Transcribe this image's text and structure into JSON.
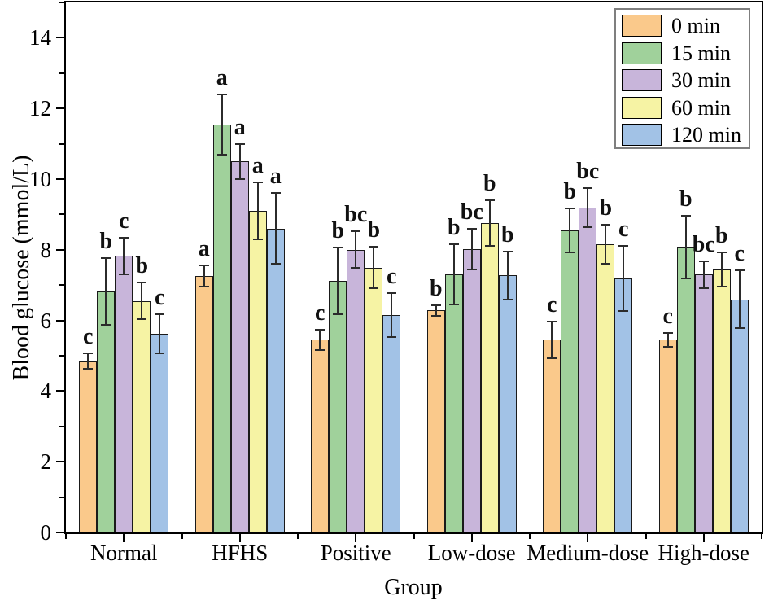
{
  "chart_data": {
    "type": "bar",
    "title": "",
    "xlabel": "Group",
    "ylabel": "Blood glucose (mmol/L)",
    "categories": [
      "Normal",
      "HFHS",
      "Positive",
      "Low-dose",
      "Medium-dose",
      "High-dose"
    ],
    "series": [
      {
        "name": "0 min",
        "color": "#FAC98B",
        "values": [
          4.85,
          7.25,
          5.45,
          6.28,
          5.45,
          5.45
        ],
        "errors": [
          0.22,
          0.3,
          0.28,
          0.15,
          0.52,
          0.2
        ],
        "letters": [
          "c",
          "a",
          "c",
          "b",
          "c",
          "c"
        ]
      },
      {
        "name": "15 min",
        "color": "#A0D19B",
        "values": [
          6.82,
          11.55,
          7.12,
          7.3,
          8.55,
          8.08
        ],
        "errors": [
          0.95,
          0.85,
          0.95,
          0.85,
          0.62,
          0.88
        ],
        "letters": [
          "b",
          "a",
          "b",
          "b",
          "b",
          "b"
        ]
      },
      {
        "name": "30 min",
        "color": "#C8B5DA",
        "values": [
          7.83,
          10.5,
          8.0,
          8.02,
          9.2,
          7.3
        ],
        "errors": [
          0.52,
          0.5,
          0.52,
          0.58,
          0.55,
          0.38
        ],
        "letters": [
          "c",
          "a",
          "bc",
          "bc",
          "bc",
          "bc"
        ]
      },
      {
        "name": "60 min",
        "color": "#F6F3A4",
        "values": [
          6.55,
          9.1,
          7.5,
          8.75,
          8.15,
          7.45
        ],
        "errors": [
          0.52,
          0.8,
          0.58,
          0.65,
          0.55,
          0.48
        ],
        "letters": [
          "b",
          "a",
          "b",
          "b",
          "b",
          "b"
        ]
      },
      {
        "name": "120 min",
        "color": "#A2C2E6",
        "values": [
          5.62,
          8.6,
          6.15,
          7.28,
          7.18,
          6.6
        ],
        "errors": [
          0.55,
          1.0,
          0.62,
          0.68,
          0.92,
          0.82
        ],
        "letters": [
          "c",
          "a",
          "c",
          "b",
          "c",
          "c"
        ]
      }
    ],
    "ylim": [
      0,
      15
    ],
    "y_major_ticks": [
      0,
      2,
      4,
      6,
      8,
      10,
      12,
      14
    ],
    "y_minor_ticks": [
      1,
      3,
      5,
      7,
      9,
      11,
      13,
      15
    ],
    "legend_position": "top-right",
    "grid": false,
    "bar_edge_color": "#1a1a1a",
    "error_bar_color": "#2b2b2b"
  }
}
